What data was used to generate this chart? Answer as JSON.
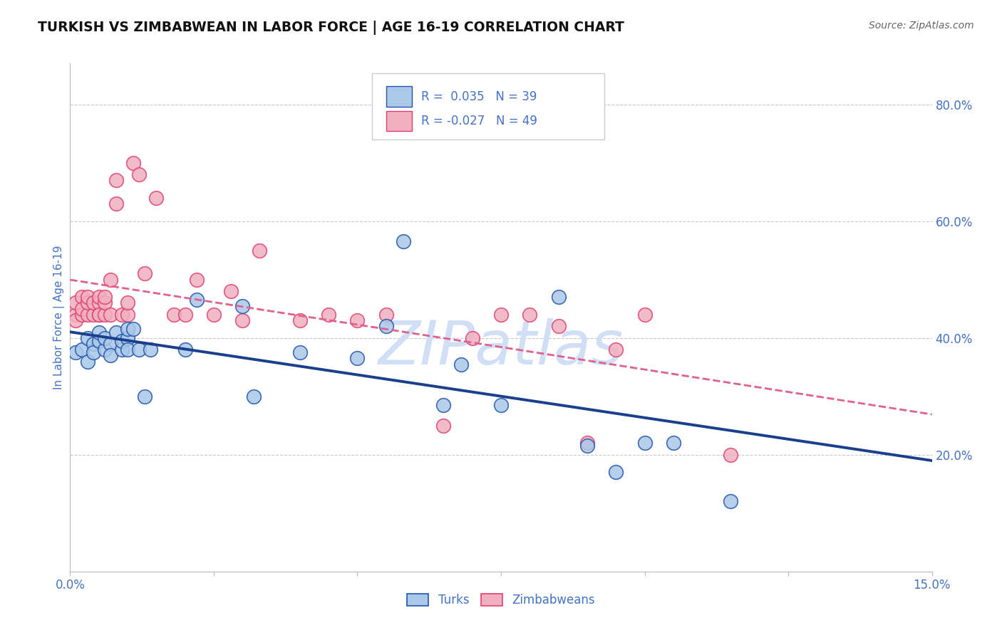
{
  "title": "TURKISH VS ZIMBABWEAN IN LABOR FORCE | AGE 16-19 CORRELATION CHART",
  "source": "Source: ZipAtlas.com",
  "ylabel_label": "In Labor Force | Age 16-19",
  "xmin": 0.0,
  "xmax": 0.15,
  "ymin": 0.0,
  "ymax": 0.87,
  "ytick_positions": [
    0.0,
    0.2,
    0.4,
    0.6,
    0.8
  ],
  "ytick_labels": [
    "",
    "20.0%",
    "40.0%",
    "60.0%",
    "80.0%"
  ],
  "xtick_positions": [
    0.0,
    0.025,
    0.05,
    0.075,
    0.1,
    0.125,
    0.15
  ],
  "xtick_labels": [
    "0.0%",
    "",
    "",
    "",
    "",
    "",
    "15.0%"
  ],
  "turks_R": 0.035,
  "turks_N": 39,
  "zimbabweans_R": -0.027,
  "zimbabweans_N": 49,
  "turks_fill": "#aac8e8",
  "turks_edge": "#2255aa",
  "zimbabweans_fill": "#f0b0c0",
  "zimbabweans_edge": "#e04070",
  "turks_trend_color": "#1a3f8c",
  "zimbabweans_trend_color": "#e06090",
  "background_color": "#ffffff",
  "grid_color": "#c8c8c8",
  "title_color": "#111111",
  "label_color": "#4472c4",
  "source_color": "#666666",
  "watermark_text": "ZIPatlas",
  "watermark_color": "#d0dff5",
  "turks_x": [
    0.001,
    0.002,
    0.003,
    0.003,
    0.004,
    0.004,
    0.005,
    0.005,
    0.006,
    0.006,
    0.007,
    0.007,
    0.008,
    0.009,
    0.009,
    0.01,
    0.01,
    0.01,
    0.011,
    0.012,
    0.013,
    0.014,
    0.02,
    0.022,
    0.03,
    0.032,
    0.04,
    0.05,
    0.055,
    0.058,
    0.065,
    0.068,
    0.075,
    0.085,
    0.09,
    0.095,
    0.1,
    0.105,
    0.115
  ],
  "turks_y": [
    0.375,
    0.38,
    0.4,
    0.36,
    0.39,
    0.375,
    0.395,
    0.41,
    0.38,
    0.4,
    0.39,
    0.37,
    0.41,
    0.38,
    0.395,
    0.4,
    0.38,
    0.415,
    0.415,
    0.38,
    0.3,
    0.38,
    0.38,
    0.465,
    0.455,
    0.3,
    0.375,
    0.365,
    0.42,
    0.565,
    0.285,
    0.355,
    0.285,
    0.47,
    0.215,
    0.17,
    0.22,
    0.22,
    0.12
  ],
  "zimbabweans_x": [
    0.001,
    0.001,
    0.001,
    0.002,
    0.002,
    0.002,
    0.003,
    0.003,
    0.003,
    0.004,
    0.004,
    0.005,
    0.005,
    0.005,
    0.005,
    0.006,
    0.006,
    0.006,
    0.007,
    0.007,
    0.008,
    0.008,
    0.009,
    0.01,
    0.01,
    0.011,
    0.012,
    0.013,
    0.015,
    0.018,
    0.02,
    0.022,
    0.025,
    0.028,
    0.03,
    0.033,
    0.04,
    0.045,
    0.05,
    0.055,
    0.065,
    0.07,
    0.075,
    0.08,
    0.085,
    0.09,
    0.095,
    0.1,
    0.115
  ],
  "zimbabweans_y": [
    0.44,
    0.43,
    0.46,
    0.44,
    0.47,
    0.45,
    0.44,
    0.46,
    0.47,
    0.44,
    0.46,
    0.44,
    0.46,
    0.47,
    0.44,
    0.44,
    0.46,
    0.47,
    0.5,
    0.44,
    0.63,
    0.67,
    0.44,
    0.44,
    0.46,
    0.7,
    0.68,
    0.51,
    0.64,
    0.44,
    0.44,
    0.5,
    0.44,
    0.48,
    0.43,
    0.55,
    0.43,
    0.44,
    0.43,
    0.44,
    0.25,
    0.4,
    0.44,
    0.44,
    0.42,
    0.22,
    0.38,
    0.44,
    0.2
  ]
}
